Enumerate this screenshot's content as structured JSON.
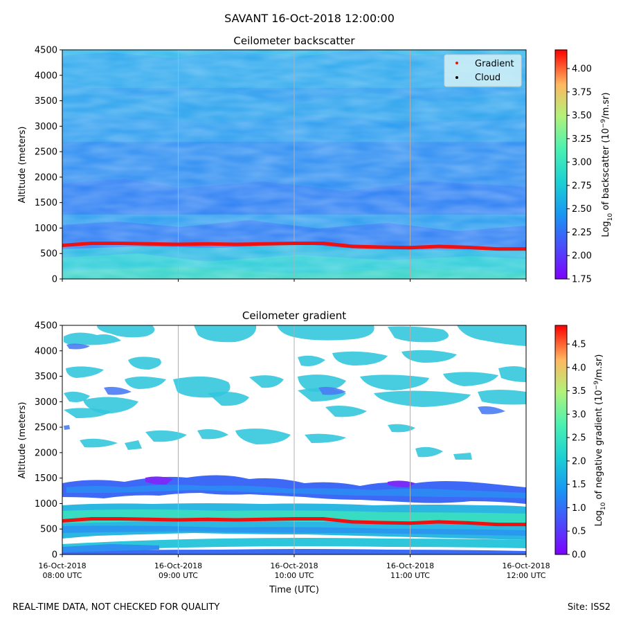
{
  "suptitle": "SAVANT 16-Oct-2018 12:00:00",
  "footer": {
    "left": "REAL-TIME DATA, NOT CHECKED FOR QUALITY",
    "right": "Site: ISS2"
  },
  "colors": {
    "gradient_marker": "#ee1111",
    "cloud_marker": "#000000",
    "legend_bg": "#d4f1f7",
    "grid": "#b0b0b0"
  },
  "chart_data": [
    {
      "type": "heatmap",
      "title": "Ceilometer backscatter",
      "ylabel": "Altitude (meters)",
      "ylim": [
        0,
        4500
      ],
      "yticks": [
        "0",
        "500",
        "1000",
        "1500",
        "2000",
        "2500",
        "3000",
        "3500",
        "4000",
        "4500"
      ],
      "xlim_hours": [
        8,
        12
      ],
      "colorbar": {
        "label_prefix": "Log",
        "label_sub": "10",
        "label_mid": " of backscatter (10",
        "label_sup": "−9",
        "label_suffix": "/m.sr)",
        "range": [
          1.75,
          4.2
        ],
        "ticks": [
          "1.75",
          "2.00",
          "2.25",
          "2.50",
          "2.75",
          "3.00",
          "3.25",
          "3.50",
          "3.75",
          "4.00"
        ],
        "tick_values": [
          1.75,
          2.0,
          2.25,
          2.5,
          2.75,
          3.0,
          3.25,
          3.5,
          3.75,
          4.0
        ]
      },
      "legend": [
        {
          "label": "Gradient",
          "color": "#ee1111"
        },
        {
          "label": "Cloud",
          "color": "#000000"
        }
      ],
      "series": [
        {
          "name": "Gradient",
          "x_hours": [
            8.0,
            8.25,
            8.5,
            8.75,
            9.0,
            9.25,
            9.5,
            9.75,
            10.0,
            10.25,
            10.5,
            10.75,
            11.0,
            11.25,
            11.5,
            11.75,
            12.0
          ],
          "altitude": [
            660,
            700,
            700,
            690,
            680,
            690,
            680,
            690,
            700,
            700,
            640,
            625,
            615,
            640,
            620,
            590,
            590
          ]
        }
      ]
    },
    {
      "type": "heatmap",
      "title": "Ceilometer gradient",
      "ylabel": "Altitude (meters)",
      "xlabel": "Time (UTC)",
      "ylim": [
        0,
        4500
      ],
      "yticks": [
        "0",
        "500",
        "1000",
        "1500",
        "2000",
        "2500",
        "3000",
        "3500",
        "4000",
        "4500"
      ],
      "xlim_hours": [
        8,
        12
      ],
      "xticks": [
        {
          "line1": "16-Oct-2018",
          "line2": "08:00 UTC",
          "hour": 8
        },
        {
          "line1": "16-Oct-2018",
          "line2": "09:00 UTC",
          "hour": 9
        },
        {
          "line1": "16-Oct-2018",
          "line2": "10:00 UTC",
          "hour": 10
        },
        {
          "line1": "16-Oct-2018",
          "line2": "11:00 UTC",
          "hour": 11
        },
        {
          "line1": "16-Oct-2018",
          "line2": "12:00 UTC",
          "hour": 12
        }
      ],
      "colorbar": {
        "label_prefix": "Log",
        "label_sub": "10",
        "label_mid": " of negative gradient (10",
        "label_sup": "−9",
        "label_suffix": "/m.sr)",
        "range": [
          0.0,
          4.9
        ],
        "ticks": [
          "0.0",
          "0.5",
          "1.0",
          "1.5",
          "2.0",
          "2.5",
          "3.0",
          "3.5",
          "4.0",
          "4.5"
        ],
        "tick_values": [
          0.0,
          0.5,
          1.0,
          1.5,
          2.0,
          2.5,
          3.0,
          3.5,
          4.0,
          4.5
        ]
      },
      "series": [
        {
          "name": "Gradient",
          "x_hours": [
            8.0,
            8.25,
            8.5,
            8.75,
            9.0,
            9.25,
            9.5,
            9.75,
            10.0,
            10.25,
            10.5,
            10.75,
            11.0,
            11.25,
            11.5,
            11.75,
            12.0
          ],
          "altitude": [
            660,
            700,
            700,
            690,
            680,
            690,
            680,
            690,
            700,
            700,
            640,
            625,
            615,
            640,
            620,
            590,
            590
          ]
        }
      ]
    }
  ]
}
